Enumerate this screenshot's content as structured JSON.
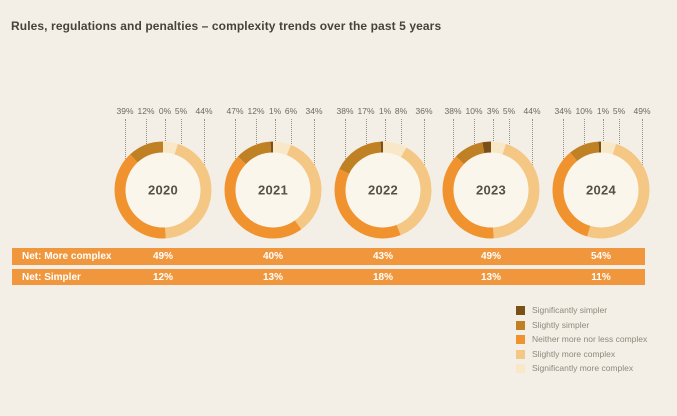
{
  "title": "Rules, regulations and penalties – complexity trends over the past 5 years",
  "chart_data": {
    "type": "pie",
    "subtype": "donut-series",
    "title": "Rules, regulations and penalties – complexity trends over the past 5 years",
    "categories": [
      "Significantly simpler",
      "Slightly simpler",
      "Neither more nor less complex",
      "Slightly more complex",
      "Significantly more complex"
    ],
    "colors": {
      "significantly_simpler": "#7b5017",
      "slightly_simpler": "#c08125",
      "neither": "#f0932f",
      "slightly_more": "#f4c784",
      "significantly_more": "#f8e8c7"
    },
    "dot_color": "#4a443a",
    "hole_color": "#faf6ec",
    "value_suffix": "%",
    "label_order": [
      "neither",
      "slightly_simpler",
      "significantly_simpler",
      "significantly_more",
      "slightly_more"
    ],
    "segment_order_clockwise": [
      "significantly_more",
      "slightly_more",
      "neither",
      "slightly_simpler",
      "significantly_simpler"
    ],
    "years": [
      {
        "year": "2020",
        "values": {
          "neither": 39,
          "slightly_simpler": 12,
          "significantly_simpler": 0,
          "significantly_more": 5,
          "slightly_more": 44
        }
      },
      {
        "year": "2021",
        "values": {
          "neither": 47,
          "slightly_simpler": 12,
          "significantly_simpler": 1,
          "significantly_more": 6,
          "slightly_more": 34
        }
      },
      {
        "year": "2022",
        "values": {
          "neither": 38,
          "slightly_simpler": 17,
          "significantly_simpler": 1,
          "significantly_more": 8,
          "slightly_more": 36
        }
      },
      {
        "year": "2023",
        "values": {
          "neither": 38,
          "slightly_simpler": 10,
          "significantly_simpler": 3,
          "significantly_more": 5,
          "slightly_more": 44
        }
      },
      {
        "year": "2024",
        "values": {
          "neither": 34,
          "slightly_simpler": 10,
          "significantly_simpler": 1,
          "significantly_more": 5,
          "slightly_more": 49
        }
      }
    ],
    "net_rows": [
      {
        "label": "Net: More complex",
        "values": [
          "49%",
          "40%",
          "43%",
          "49%",
          "54%"
        ]
      },
      {
        "label": "Net: Simpler",
        "values": [
          "12%",
          "13%",
          "18%",
          "13%",
          "11%"
        ]
      }
    ],
    "legend": [
      {
        "key": "significantly_simpler",
        "label": "Significantly simpler"
      },
      {
        "key": "slightly_simpler",
        "label": "Slightly simpler"
      },
      {
        "key": "neither",
        "label": "Neither more nor less complex"
      },
      {
        "key": "slightly_more",
        "label": "Slightly more complex"
      },
      {
        "key": "significantly_more",
        "label": "Significantly more complex"
      }
    ],
    "legend_position": "bottom-right",
    "table_row_color": "#f0973e",
    "background_color": "#f4efe6"
  }
}
